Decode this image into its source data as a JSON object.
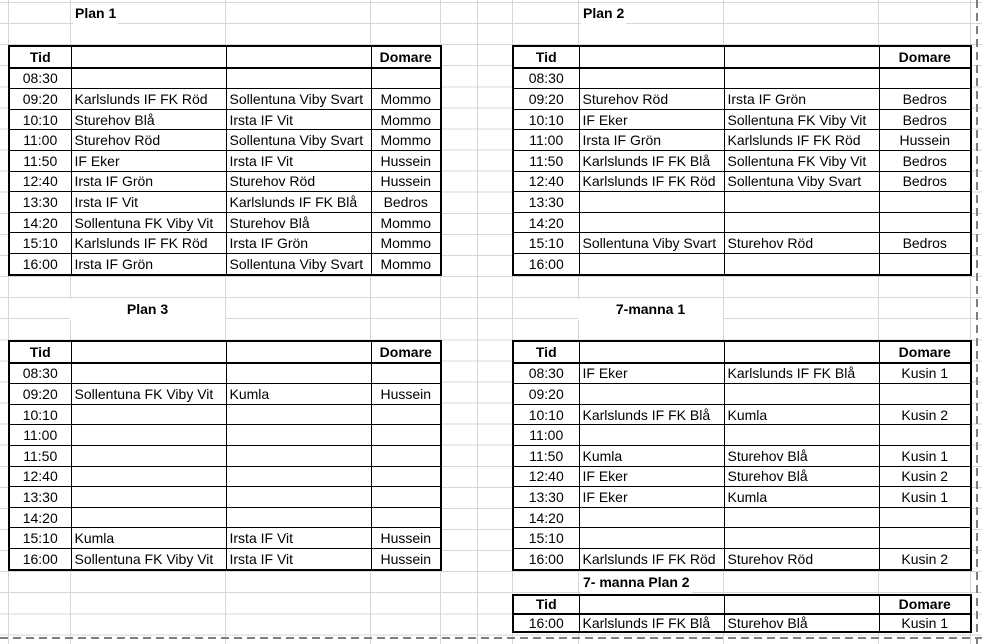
{
  "sheet": {
    "kind": "match-schedule-spreadsheet"
  },
  "tables": [
    {
      "id": "plan1",
      "title": "Plan 1",
      "headers": {
        "time": "Tid",
        "referee": "Domare"
      },
      "rows": [
        [
          "08:30",
          "",
          "",
          ""
        ],
        [
          "09:20",
          "Karlslunds IF FK Röd",
          "Sollentuna Viby Svart",
          "Mommo"
        ],
        [
          "10:10",
          "Sturehov Blå",
          "Irsta IF Vit",
          "Mommo"
        ],
        [
          "11:00",
          "Sturehov Röd",
          "Sollentuna Viby Svart",
          "Mommo"
        ],
        [
          "11:50",
          "IF Eker",
          "Irsta IF Vit",
          "Hussein"
        ],
        [
          "12:40",
          "Irsta IF Grön",
          "Sturehov Röd",
          "Hussein"
        ],
        [
          "13:30",
          "Irsta IF Vit",
          "Karlslunds IF FK Blå",
          "Bedros"
        ],
        [
          "14:20",
          "Sollentuna FK Viby Vit",
          "Sturehov Blå",
          "Mommo"
        ],
        [
          "15:10",
          "Karlslunds IF FK Röd",
          "Irsta IF Grön",
          "Mommo"
        ],
        [
          "16:00",
          "Irsta IF Grön",
          "Sollentuna Viby Svart",
          "Mommo"
        ]
      ]
    },
    {
      "id": "plan2",
      "title": "Plan 2",
      "headers": {
        "time": "Tid",
        "referee": "Domare"
      },
      "rows": [
        [
          "08:30",
          "",
          "",
          ""
        ],
        [
          "09:20",
          "Sturehov Röd",
          "Irsta IF Grön",
          "Bedros"
        ],
        [
          "10:10",
          "IF Eker",
          "Sollentuna FK Viby Vit",
          "Bedros"
        ],
        [
          "11:00",
          "Irsta IF Grön",
          "Karlslunds IF FK Röd",
          "Hussein"
        ],
        [
          "11:50",
          "Karlslunds IF FK Blå",
          "Sollentuna FK Viby Vit",
          "Bedros"
        ],
        [
          "12:40",
          "Karlslunds IF FK Röd",
          "Sollentuna Viby Svart",
          "Bedros"
        ],
        [
          "13:30",
          "",
          "",
          ""
        ],
        [
          "14:20",
          "",
          "",
          ""
        ],
        [
          "15:10",
          "Sollentuna Viby Svart",
          "Sturehov Röd",
          "Bedros"
        ],
        [
          "16:00",
          "",
          "",
          ""
        ]
      ]
    },
    {
      "id": "plan3",
      "title": "Plan 3",
      "headers": {
        "time": "Tid",
        "referee": "Domare"
      },
      "rows": [
        [
          "08:30",
          "",
          "",
          ""
        ],
        [
          "09:20",
          "Sollentuna FK Viby Vit",
          "Kumla",
          "Hussein"
        ],
        [
          "10:10",
          "",
          "",
          ""
        ],
        [
          "11:00",
          "",
          "",
          ""
        ],
        [
          "11:50",
          "",
          "",
          ""
        ],
        [
          "12:40",
          "",
          "",
          ""
        ],
        [
          "13:30",
          "",
          "",
          ""
        ],
        [
          "14:20",
          "",
          "",
          ""
        ],
        [
          "15:10",
          "Kumla",
          "Irsta IF Vit",
          "Hussein"
        ],
        [
          "16:00",
          "Sollentuna FK Viby Vit",
          "Irsta IF Vit",
          "Hussein"
        ]
      ]
    },
    {
      "id": "sjumanna1",
      "title": "7-manna 1",
      "headers": {
        "time": "Tid",
        "referee": "Domare"
      },
      "rows": [
        [
          "08:30",
          "IF Eker",
          "Karlslunds IF FK Blå",
          "Kusin 1"
        ],
        [
          "09:20",
          "",
          "",
          ""
        ],
        [
          "10:10",
          "Karlslunds IF FK Blå",
          "Kumla",
          "Kusin 2"
        ],
        [
          "11:00",
          "",
          "",
          ""
        ],
        [
          "11:50",
          "Kumla",
          "Sturehov Blå",
          "Kusin 1"
        ],
        [
          "12:40",
          "IF Eker",
          "Sturehov Blå",
          "Kusin 2"
        ],
        [
          "13:30",
          "IF Eker",
          "Kumla",
          "Kusin 1"
        ],
        [
          "14:20",
          "",
          "",
          ""
        ],
        [
          "15:10",
          "",
          "",
          ""
        ],
        [
          "16:00",
          "Karlslunds IF FK Röd",
          "Sturehov Röd",
          "Kusin 2"
        ]
      ]
    },
    {
      "id": "sjumannaplan2",
      "title": "7- manna Plan 2",
      "headers": {
        "time": "Tid",
        "referee": "Domare"
      },
      "rows": [
        [
          "16:00",
          "Karlslunds IF FK Blå",
          "Sturehov Blå",
          "Kusin 1"
        ]
      ]
    }
  ]
}
